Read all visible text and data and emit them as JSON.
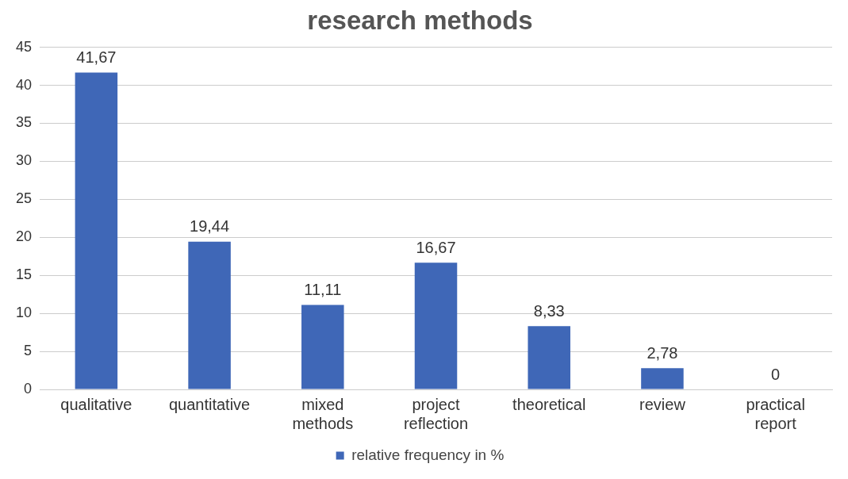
{
  "chart_data": {
    "type": "bar",
    "title": "research methods",
    "categories": [
      "qualitative",
      "quantitative",
      "mixed methods",
      "project reflection",
      "theoretical",
      "review",
      "practical report"
    ],
    "series": [
      {
        "name": "relative frequency in %",
        "color": "#3f67b7",
        "values": [
          41.67,
          19.44,
          11.11,
          16.67,
          8.33,
          2.78,
          0
        ],
        "value_labels": [
          "41,67",
          "19,44",
          "11,11",
          "16,67",
          "8,33",
          "2,78",
          "0"
        ]
      }
    ],
    "ylim": [
      0,
      45
    ],
    "yticks": [
      0,
      5,
      10,
      15,
      20,
      25,
      30,
      35,
      40,
      45
    ],
    "grid": "y",
    "legend": "bottom"
  }
}
